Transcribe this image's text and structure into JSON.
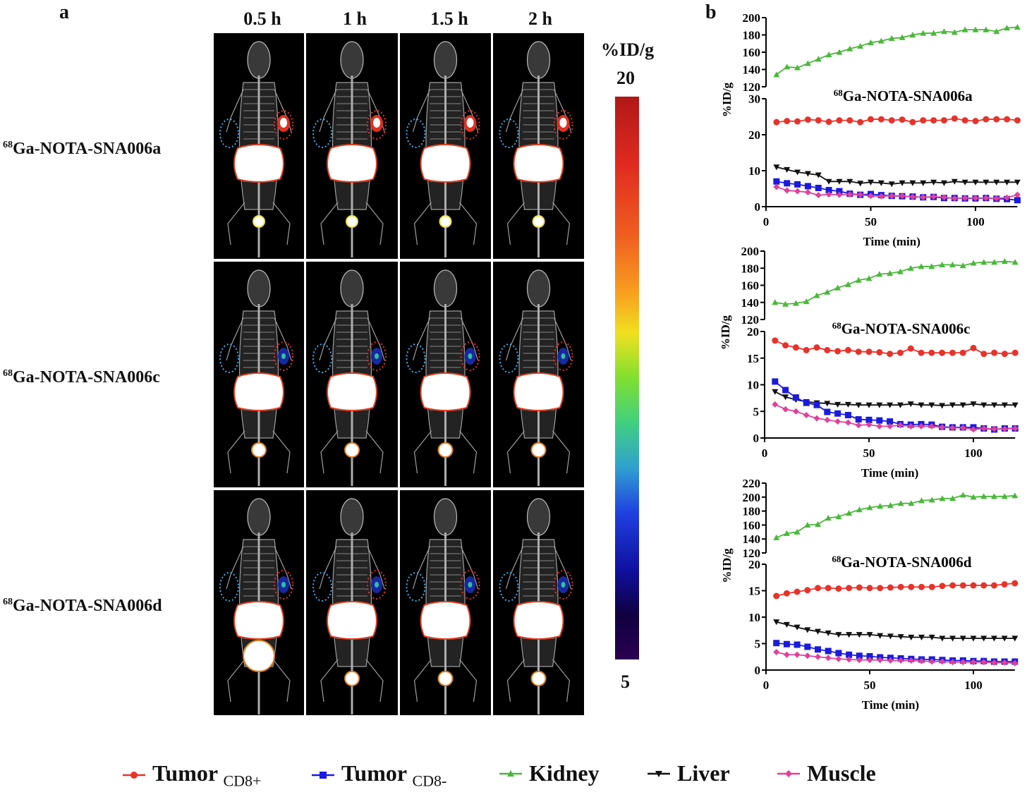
{
  "panel_a": {
    "label": "a",
    "time_headers": [
      "0.5 h",
      "1 h",
      "1.5 h",
      "2 h"
    ],
    "probes": [
      {
        "sup": "68",
        "name": "Ga-NOTA-SNA006a"
      },
      {
        "sup": "68",
        "name": "Ga-NOTA-SNA006c"
      },
      {
        "sup": "68",
        "name": "Ga-NOTA-SNA006d"
      }
    ],
    "colorbar": {
      "unit": "%ID/g",
      "max": "20",
      "min": "5"
    },
    "roi_colors": {
      "cd8_negative": "#3ab0e8",
      "cd8_positive": "#e83030"
    }
  },
  "panel_b": {
    "label": "b"
  },
  "chart_data": [
    {
      "type": "line",
      "title_sup": "68",
      "title": "Ga-NOTA-SNA006a",
      "xlabel": "Time (min)",
      "ylabel": "%ID/g",
      "xlim": [
        0,
        120
      ],
      "xticks": [
        0,
        50,
        100
      ],
      "broken_y_axis": true,
      "upper_ylim": [
        120,
        200
      ],
      "upper_yticks": [
        120,
        140,
        160,
        180,
        200
      ],
      "lower_ylim": [
        0,
        30
      ],
      "lower_yticks": [
        0,
        10,
        20,
        30
      ],
      "x": [
        5,
        10,
        15,
        20,
        25,
        30,
        35,
        40,
        45,
        50,
        55,
        60,
        65,
        70,
        75,
        80,
        85,
        90,
        95,
        100,
        105,
        110,
        115,
        120
      ],
      "series": [
        {
          "name": "Kidney",
          "values": [
            134,
            143,
            142,
            147,
            152,
            157,
            160,
            164,
            167,
            171,
            173,
            176,
            177,
            180,
            182,
            182,
            184,
            183,
            186,
            186,
            186,
            184,
            188,
            189
          ]
        },
        {
          "name": "Tumor CD8+",
          "values": [
            23.5,
            23.8,
            23.7,
            24.2,
            24,
            23.6,
            24,
            24,
            23.5,
            24.3,
            24.3,
            24,
            24.2,
            23.5,
            24,
            24,
            24,
            24.5,
            24,
            23.8,
            24.3,
            24.3,
            24.3,
            24
          ]
        },
        {
          "name": "Liver",
          "values": [
            11,
            10.3,
            9.6,
            9.2,
            8.8,
            7,
            7,
            7,
            6.5,
            6.8,
            6.6,
            6.3,
            6.6,
            6.6,
            6.6,
            6.8,
            6.6,
            7,
            6.8,
            6.8,
            6.8,
            6.8,
            6.8,
            6.8
          ]
        },
        {
          "name": "Tumor CD8-",
          "values": [
            7,
            6.5,
            6.2,
            5.7,
            5.2,
            4.6,
            4.3,
            3.6,
            3.3,
            3.5,
            3.2,
            3,
            2.9,
            2.8,
            2.6,
            2.7,
            2.4,
            2.4,
            2.3,
            2.3,
            2.4,
            2.2,
            2.1,
            1.8
          ]
        },
        {
          "name": "Muscle",
          "values": [
            5.5,
            4.5,
            4.3,
            4,
            3.2,
            3.4,
            3.3,
            3.4,
            3.3,
            3,
            2.9,
            3,
            3,
            2.7,
            2.6,
            2.8,
            2.6,
            2.3,
            2.4,
            2.4,
            2.4,
            2.3,
            2.5,
            3.3
          ]
        }
      ]
    },
    {
      "type": "line",
      "title_sup": "68",
      "title": "Ga-NOTA-SNA006c",
      "xlabel": "Time (min)",
      "ylabel": "%ID/g",
      "xlim": [
        0,
        120
      ],
      "xticks": [
        0,
        50,
        100
      ],
      "broken_y_axis": true,
      "upper_ylim": [
        120,
        200
      ],
      "upper_yticks": [
        120,
        140,
        160,
        180,
        200
      ],
      "lower_ylim": [
        0,
        20
      ],
      "lower_yticks": [
        0,
        5,
        10,
        15,
        20
      ],
      "x": [
        5,
        10,
        15,
        20,
        25,
        30,
        35,
        40,
        45,
        50,
        55,
        60,
        65,
        70,
        75,
        80,
        85,
        90,
        95,
        100,
        105,
        110,
        115,
        120
      ],
      "series": [
        {
          "name": "Kidney",
          "values": [
            140,
            138,
            139,
            141,
            148,
            152,
            157,
            161,
            166,
            168,
            173,
            174,
            176,
            180,
            182,
            182,
            184,
            184,
            183,
            186,
            187,
            187,
            188,
            187
          ]
        },
        {
          "name": "Tumor CD8+",
          "values": [
            18.3,
            17.4,
            17,
            16.5,
            17,
            16.5,
            16.3,
            16.5,
            16.2,
            16.2,
            16.1,
            15.8,
            16,
            16.8,
            16,
            16,
            16,
            16,
            16,
            16.9,
            15.8,
            16,
            15.8,
            16
          ]
        },
        {
          "name": "Liver",
          "values": [
            8.7,
            7.7,
            7.2,
            6.8,
            6.6,
            6.5,
            6.3,
            6.3,
            6.2,
            6.2,
            6.2,
            6.2,
            6.2,
            6.4,
            6.2,
            6.2,
            6.1,
            6.2,
            6.2,
            6.4,
            6.2,
            6.2,
            6.2,
            6.2
          ]
        },
        {
          "name": "Tumor CD8-",
          "values": [
            10.6,
            9,
            7.6,
            6.6,
            6.2,
            4.9,
            4.6,
            4.3,
            3.5,
            3.4,
            3.3,
            3.1,
            2.6,
            2.5,
            2.6,
            2.5,
            2.1,
            2,
            2,
            2,
            1.8,
            1.6,
            1.8,
            1.8
          ]
        },
        {
          "name": "Muscle",
          "values": [
            6.3,
            5.4,
            5,
            4.3,
            3.7,
            3.4,
            3.1,
            2.9,
            2.4,
            2.5,
            2.2,
            2.2,
            2.4,
            2.2,
            2.2,
            2.2,
            2,
            1.9,
            1.9,
            1.6,
            1.8,
            1.7,
            1.7,
            1.8
          ]
        }
      ]
    },
    {
      "type": "line",
      "title_sup": "68",
      "title": "Ga-NOTA-SNA006d",
      "xlabel": "Time (min)",
      "ylabel": "%ID/g",
      "xlim": [
        0,
        120
      ],
      "xticks": [
        0,
        50,
        100
      ],
      "broken_y_axis": true,
      "upper_ylim": [
        120,
        220
      ],
      "upper_yticks": [
        120,
        140,
        160,
        180,
        200,
        220
      ],
      "lower_ylim": [
        0,
        20
      ],
      "lower_yticks": [
        0,
        5,
        10,
        15,
        20
      ],
      "x": [
        5,
        10,
        15,
        20,
        25,
        30,
        35,
        40,
        45,
        50,
        55,
        60,
        65,
        70,
        75,
        80,
        85,
        90,
        95,
        100,
        105,
        110,
        115,
        120
      ],
      "series": [
        {
          "name": "Kidney",
          "values": [
            142,
            148,
            150,
            160,
            161,
            170,
            172,
            177,
            182,
            185,
            187,
            188,
            191,
            191,
            195,
            196,
            198,
            198,
            203,
            200,
            201,
            201,
            201,
            202
          ]
        },
        {
          "name": "Tumor CD8+",
          "values": [
            14,
            14.5,
            14.8,
            15.1,
            15.5,
            15.5,
            15.4,
            15.5,
            15.6,
            15.5,
            15.5,
            15.6,
            15.7,
            15.7,
            15.7,
            15.7,
            15.9,
            16,
            16,
            16,
            16,
            16,
            16.2,
            16.4
          ]
        },
        {
          "name": "Liver",
          "values": [
            9.1,
            8.6,
            8.1,
            7.6,
            7.3,
            7,
            6.7,
            6.7,
            6.7,
            6.7,
            6.5,
            6.4,
            6.3,
            6.2,
            6.2,
            6.2,
            6,
            6,
            6,
            6,
            6,
            6,
            6,
            6
          ]
        },
        {
          "name": "Tumor CD8-",
          "values": [
            5.1,
            4.9,
            4.8,
            4.4,
            3.9,
            3.6,
            3.2,
            2.9,
            2.7,
            2.6,
            2.4,
            2.3,
            2.2,
            2.1,
            2,
            2,
            1.9,
            1.8,
            1.8,
            1.7,
            1.7,
            1.6,
            1.6,
            1.6
          ]
        },
        {
          "name": "Muscle",
          "values": [
            3.4,
            2.9,
            2.9,
            2.7,
            2.5,
            2.3,
            2.1,
            2,
            1.9,
            1.9,
            1.9,
            1.8,
            1.8,
            1.8,
            1.7,
            1.6,
            1.6,
            1.5,
            1.5,
            1.5,
            1.5,
            1.4,
            1.4,
            1.3
          ]
        }
      ]
    }
  ],
  "legend": [
    {
      "label": "Tumor",
      "sub": "CD8+",
      "marker": "circle",
      "color": "#e8322a"
    },
    {
      "label": "Tumor",
      "sub": "CD8-",
      "marker": "square",
      "color": "#1a1adf"
    },
    {
      "label": "Kidney",
      "sub": "",
      "marker": "triangle-up",
      "color": "#4ab83a"
    },
    {
      "label": "Liver",
      "sub": "",
      "marker": "triangle-down",
      "color": "#111111"
    },
    {
      "label": "Muscle",
      "sub": "",
      "marker": "diamond",
      "color": "#e0409a"
    }
  ]
}
